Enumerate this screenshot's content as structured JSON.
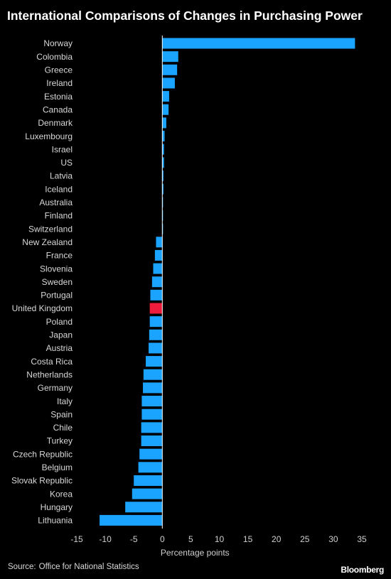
{
  "chart_data": {
    "type": "bar",
    "orientation": "horizontal",
    "title": "International Comparisons of Changes in Purchasing Power",
    "xlabel": "Percentage points",
    "ylabel": "",
    "xlim": [
      -15,
      35
    ],
    "xticks": [
      -15,
      -10,
      -5,
      0,
      5,
      10,
      15,
      20,
      25,
      30,
      35
    ],
    "grid": false,
    "colors": {
      "default": "#1aa3ff",
      "highlight": "#ee1c3c"
    },
    "highlight": "United Kingdom",
    "categories": [
      "Norway",
      "Colombia",
      "Greece",
      "Ireland",
      "Estonia",
      "Canada",
      "Denmark",
      "Luxembourg",
      "Israel",
      "US",
      "Latvia",
      "Iceland",
      "Australia",
      "Finland",
      "Switzerland",
      "New Zealand",
      "France",
      "Slovenia",
      "Sweden",
      "Portugal",
      "United Kingdom",
      "Poland",
      "Japan",
      "Austria",
      "Costa Rica",
      "Netherlands",
      "Germany",
      "Italy",
      "Spain",
      "Chile",
      "Turkey",
      "Czech Republic",
      "Belgium",
      "Slovak Republic",
      "Korea",
      "Hungary",
      "Lithuania"
    ],
    "values": [
      33.8,
      2.8,
      2.6,
      2.2,
      1.2,
      1.1,
      0.7,
      0.4,
      0.3,
      0.3,
      0.2,
      0.2,
      0.1,
      0.1,
      0.05,
      -1.1,
      -1.3,
      -1.6,
      -1.8,
      -2.1,
      -2.2,
      -2.2,
      -2.3,
      -2.4,
      -2.9,
      -3.3,
      -3.4,
      -3.6,
      -3.6,
      -3.7,
      -3.7,
      -4.0,
      -4.2,
      -5.0,
      -5.3,
      -6.5,
      -11.0
    ]
  },
  "footer": {
    "source_prefix": "Source:",
    "source_text": "Office for National Statistics",
    "brand": "Bloomberg"
  }
}
